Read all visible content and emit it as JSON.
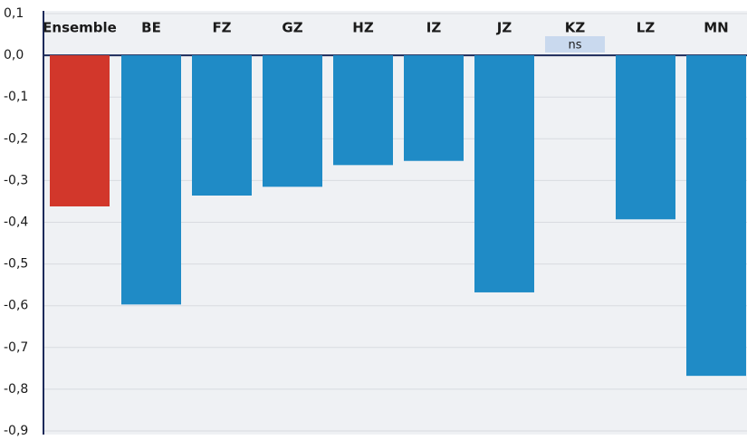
{
  "chart_data": {
    "type": "bar",
    "categories": [
      "Ensemble",
      "BE",
      "FZ",
      "GZ",
      "HZ",
      "IZ",
      "JZ",
      "KZ",
      "LZ",
      "MN"
    ],
    "values": [
      -0.362,
      -0.597,
      -0.336,
      -0.315,
      -0.263,
      -0.253,
      -0.568,
      null,
      -0.393,
      -0.768
    ],
    "colors": [
      "#d2372b",
      "#1f8bc6",
      "#1f8bc6",
      "#1f8bc6",
      "#1f8bc6",
      "#1f8bc6",
      "#1f8bc6",
      "#1f8bc6",
      "#1f8bc6",
      "#1f8bc6"
    ],
    "annotations": [
      {
        "text": "ns",
        "category": "KZ"
      }
    ],
    "ylim": [
      -0.9,
      0.1
    ],
    "yticks": [
      {
        "value": 0.1,
        "label": "0,1"
      },
      {
        "value": 0,
        "label": "0,0"
      },
      {
        "value": -0.1,
        "label": "-0,1"
      },
      {
        "value": -0.2,
        "label": "-0,2"
      },
      {
        "value": -0.3,
        "label": "-0,3"
      },
      {
        "value": -0.4,
        "label": "-0,4"
      },
      {
        "value": -0.5,
        "label": "-0,5"
      },
      {
        "value": -0.6,
        "label": "-0,6"
      },
      {
        "value": -0.7,
        "label": "-0,7"
      },
      {
        "value": -0.8,
        "label": "-0,8"
      },
      {
        "value": -0.9,
        "label": "-0,9"
      }
    ],
    "grid": true
  }
}
